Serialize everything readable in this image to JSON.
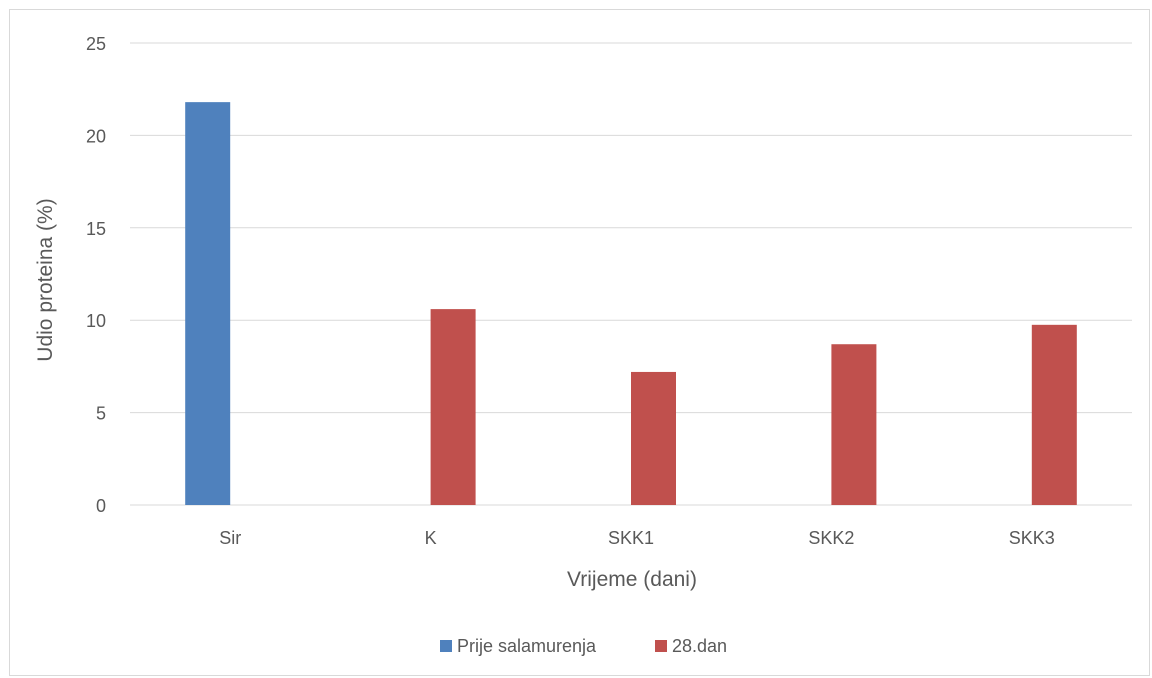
{
  "chart_data": {
    "type": "bar",
    "categories": [
      "Sir",
      "K",
      "SKK1",
      "SKK2",
      "SKK3"
    ],
    "series": [
      {
        "name": "Prije salamurenja",
        "values": [
          21.8,
          null,
          null,
          null,
          null
        ],
        "color": "#4f81bd"
      },
      {
        "name": "28.dan",
        "values": [
          null,
          10.6,
          7.2,
          8.7,
          9.75
        ],
        "color": "#c0504d"
      }
    ],
    "title": "",
    "xlabel": "Vrijeme (dani)",
    "ylabel": "Udio proteina (%)",
    "ylim": [
      0,
      25
    ],
    "yticks": [
      "0",
      "5",
      "10",
      "15",
      "20",
      "25"
    ],
    "grid": true,
    "legend_position": "bottom",
    "gridline_color": "#d9d9d9"
  }
}
